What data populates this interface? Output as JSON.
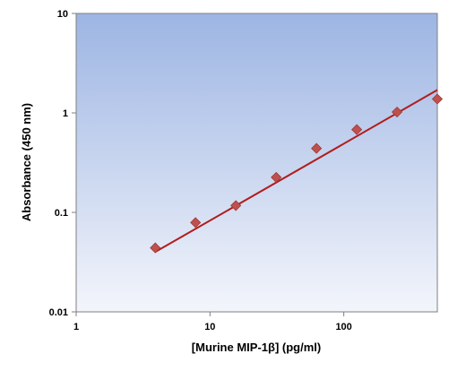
{
  "chart_data": {
    "type": "scatter",
    "title": "",
    "xlabel": "[Murine MIP-1β] (pg/ml)",
    "ylabel": "Absorbance (450 nm)",
    "x_scale": "log",
    "y_scale": "log",
    "xlim": [
      1,
      500
    ],
    "ylim": [
      0.01,
      10
    ],
    "x_ticks": [
      1,
      10,
      100
    ],
    "x_tick_labels": [
      "1",
      "10",
      "100"
    ],
    "y_ticks": [
      0.01,
      0.1,
      1,
      10
    ],
    "y_tick_labels": [
      "0.01",
      "0.1",
      "1",
      "10"
    ],
    "grid": false,
    "legend": "none",
    "series": [
      {
        "kind": "points",
        "x": [
          3.9,
          7.8,
          15.6,
          31.25,
          62.5,
          125,
          250,
          500
        ],
        "y": [
          0.044,
          0.079,
          0.117,
          0.225,
          0.44,
          0.68,
          1.02,
          1.38
        ]
      },
      {
        "kind": "fit-line",
        "x": [
          3.9,
          500
        ],
        "y": [
          0.04,
          1.7
        ]
      }
    ],
    "colors": {
      "marker": "#C0504D",
      "marker_stroke": "#9B3B38",
      "fit_line": "#B01E1E",
      "plot_bg_top": "#9DB5E3",
      "plot_bg_bottom": "#F3F5FB"
    }
  }
}
